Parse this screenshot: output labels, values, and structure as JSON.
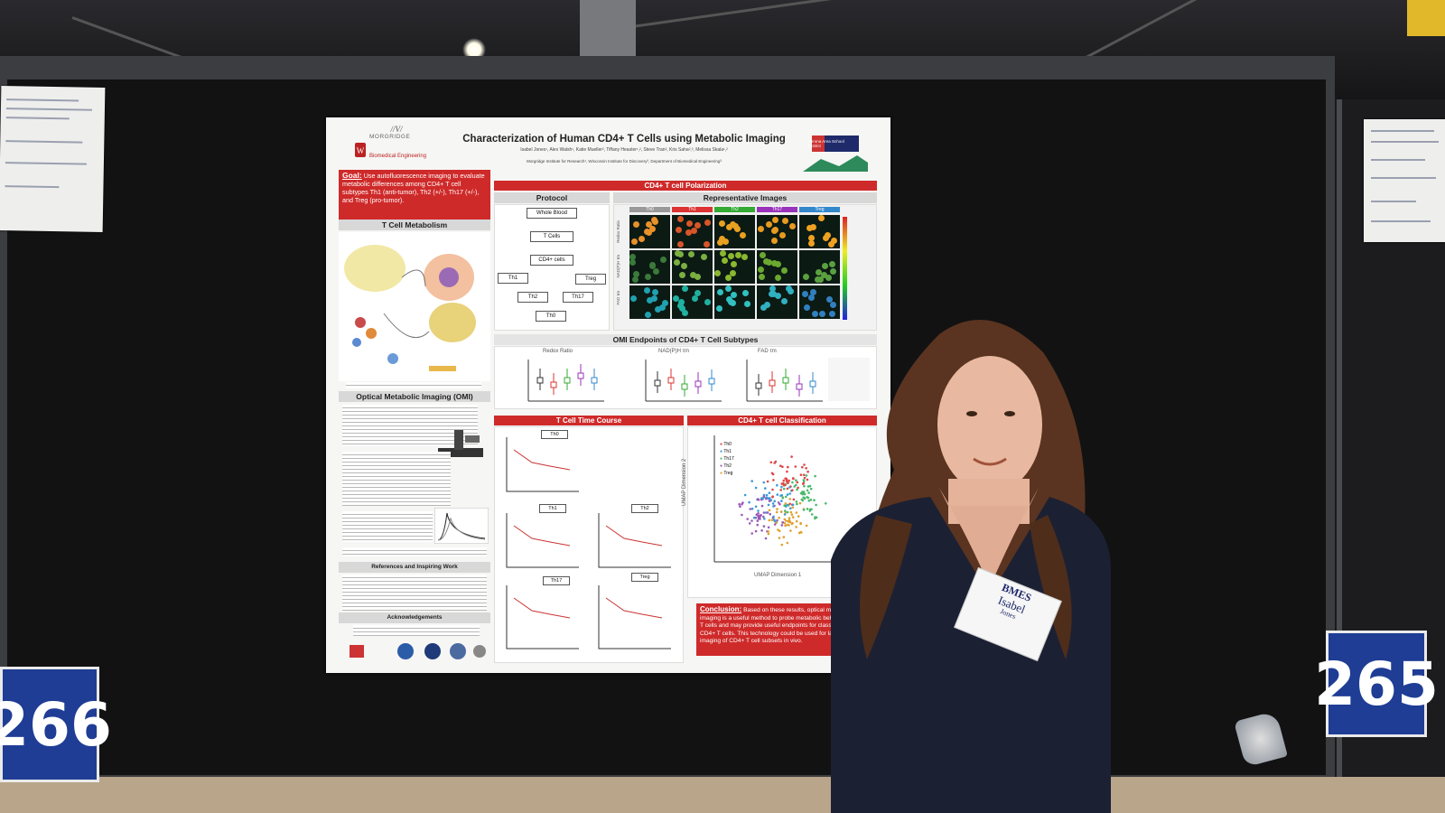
{
  "poster": {
    "title": "Characterization of Human CD4+ T Cells using Metabolic Imaging",
    "authors": "Isabel Jones¹, Alex Walsh¹, Katie Mueller², Tiffany Heaster¹,², Steve Tran², Kris Saha²,³, Melissa Skala¹,²",
    "affiliations": "Morgridge Institute for Research¹, Wisconsin Institute for Discovery², Department of Biomedical Engineering³",
    "logo_left": "MORGRIDGE",
    "logo_left_sub": "Biomedical Engineering",
    "logo_right": "Verona Area School District",
    "goal_label": "Goal:",
    "goal_text": "Use autofluorescence imaging to evaluate metabolic differences among CD4+ T cell subtypes Th1 (anti-tumor), Th2 (+/-), Th17 (+/-), and Treg (pro-tumor).",
    "sec_metabolism": "T Cell Metabolism",
    "sec_omi": "Optical Metabolic Imaging (OMI)",
    "sec_polarization": "CD4+ T cell Polarization",
    "sec_protocol": "Protocol",
    "sec_images": "Representative Images",
    "protocol_steps": [
      "Whole Blood",
      "T Cells",
      "CD4+ cells",
      "Th1",
      "Th2",
      "Th17",
      "Treg",
      "Th0"
    ],
    "image_cols": [
      "Th0",
      "Th1",
      "Th2",
      "Th17",
      "Treg"
    ],
    "image_rows": [
      "Redox Ratio",
      "NAD(P)H τm",
      "FAD τm"
    ],
    "sec_endpoints": "OMI Endpoints of CD4+ T Cell Subtypes",
    "endpoint_charts": [
      "Redox Ratio",
      "NAD(P)H τm",
      "FAD τm"
    ],
    "sec_timecourse": "T Cell Time Course",
    "timecourse_panels": [
      "Th0",
      "Th1",
      "Th2",
      "Th17",
      "Treg"
    ],
    "sec_classification": "CD4+ T cell Classification",
    "umap_legend": [
      "Th0",
      "Th1",
      "Th17",
      "Th2",
      "Treg"
    ],
    "umap_xlabel": "UMAP Dimension 1",
    "umap_ylabel": "UMAP Dimension 2",
    "sec_references": "References and Inspiring Work",
    "sec_ack": "Acknowledgements",
    "conclusion_label": "Conclusion:",
    "conclusion_text": "Based on these results, optical metabolic imaging is a useful method to probe metabolic behavior of CD4+ T cells and may provide useful endpoints for classification of CD4+ T cells. This technology could be used for label free imaging of CD4+ T cell subsets in vivo."
  },
  "badge": {
    "org": "BMES",
    "first_name": "Isabel",
    "last_name": "Jones"
  },
  "booths": {
    "left": "266",
    "right": "265"
  },
  "colors": {
    "poster_red": "#cf2a2a",
    "booth_blue": "#1f3d95",
    "umap": [
      "#e04646",
      "#3a9ad9",
      "#49b86a",
      "#9b59b6",
      "#e0a030"
    ]
  }
}
